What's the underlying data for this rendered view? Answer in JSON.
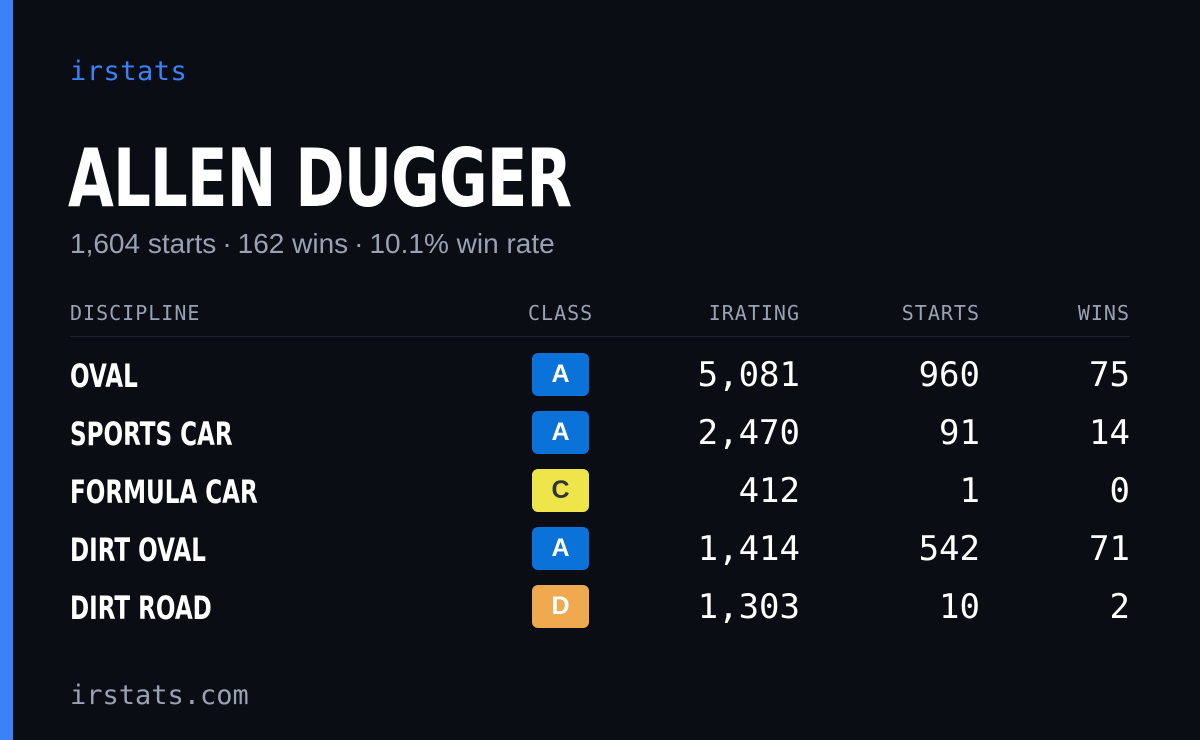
{
  "brand": "irstats",
  "driver": {
    "name": "ALLEN DUGGER",
    "starts_text": "1,604 starts",
    "wins_text": "162 wins",
    "win_rate_text": "10.1% win rate",
    "separator": "·"
  },
  "table": {
    "headers": {
      "discipline": "DISCIPLINE",
      "class": "CLASS",
      "irating": "IRATING",
      "starts": "STARTS",
      "wins": "WINS"
    },
    "rows": [
      {
        "discipline": "OVAL",
        "class": "A",
        "irating": "5,081",
        "starts": "960",
        "wins": "75"
      },
      {
        "discipline": "SPORTS CAR",
        "class": "A",
        "irating": "2,470",
        "starts": "91",
        "wins": "14"
      },
      {
        "discipline": "FORMULA CAR",
        "class": "C",
        "irating": "412",
        "starts": "1",
        "wins": "0"
      },
      {
        "discipline": "DIRT OVAL",
        "class": "A",
        "irating": "1,414",
        "starts": "542",
        "wins": "71"
      },
      {
        "discipline": "DIRT ROAD",
        "class": "D",
        "irating": "1,303",
        "starts": "10",
        "wins": "2"
      }
    ]
  },
  "class_colors": {
    "A": {
      "bg": "#0a72d9",
      "fg": "#ffffff"
    },
    "C": {
      "bg": "#ede54a",
      "fg": "#333333"
    },
    "D": {
      "bg": "#efaa4f",
      "fg": "#ffffff"
    }
  },
  "accent_color": "#3b82f6",
  "footer": "irstats.com"
}
